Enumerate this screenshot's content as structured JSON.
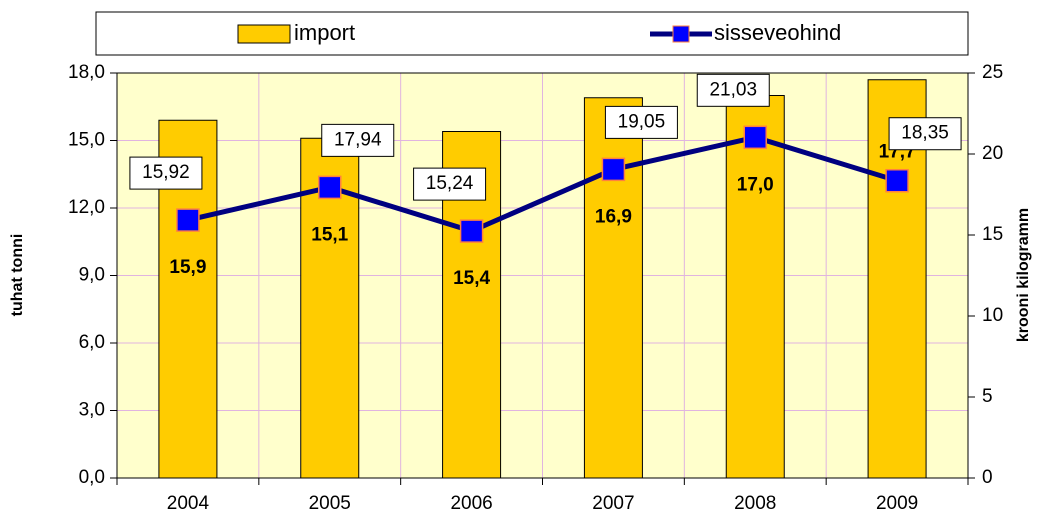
{
  "chart_data": {
    "type": "combo",
    "ylabel": "tuhat tonni",
    "y2label": "krooni kilogramm",
    "categories": [
      "2004",
      "2005",
      "2006",
      "2007",
      "2008",
      "2009"
    ],
    "series": [
      {
        "name": "import",
        "type": "bar",
        "color": "#ffcc00",
        "values": [
          15.9,
          15.1,
          15.4,
          16.9,
          17.0,
          17.7
        ],
        "value_labels": [
          "15,9",
          "15,1",
          "15,4",
          "16,9",
          "17,0",
          "17,7"
        ]
      },
      {
        "name": "sisseveohind",
        "type": "line",
        "axis": "y2",
        "color": "#000080",
        "marker_color": "#0000ff",
        "values": [
          15.92,
          17.94,
          15.24,
          19.05,
          21.03,
          18.35
        ],
        "value_labels": [
          "15,92",
          "17,94",
          "15,24",
          "19,05",
          "21,03",
          "18,35"
        ]
      }
    ],
    "ylim": [
      0,
      18
    ],
    "yticks": [
      {
        "value": 0,
        "label": "0,0"
      },
      {
        "value": 3,
        "label": "3,0"
      },
      {
        "value": 6,
        "label": "6,0"
      },
      {
        "value": 9,
        "label": "9,0"
      },
      {
        "value": 12,
        "label": "12,0"
      },
      {
        "value": 15,
        "label": "15,0"
      },
      {
        "value": 18,
        "label": "18,0"
      }
    ],
    "y2lim": [
      0,
      25
    ],
    "y2ticks": [
      0,
      5,
      10,
      15,
      20,
      25
    ],
    "grid": true,
    "legend": "top"
  }
}
